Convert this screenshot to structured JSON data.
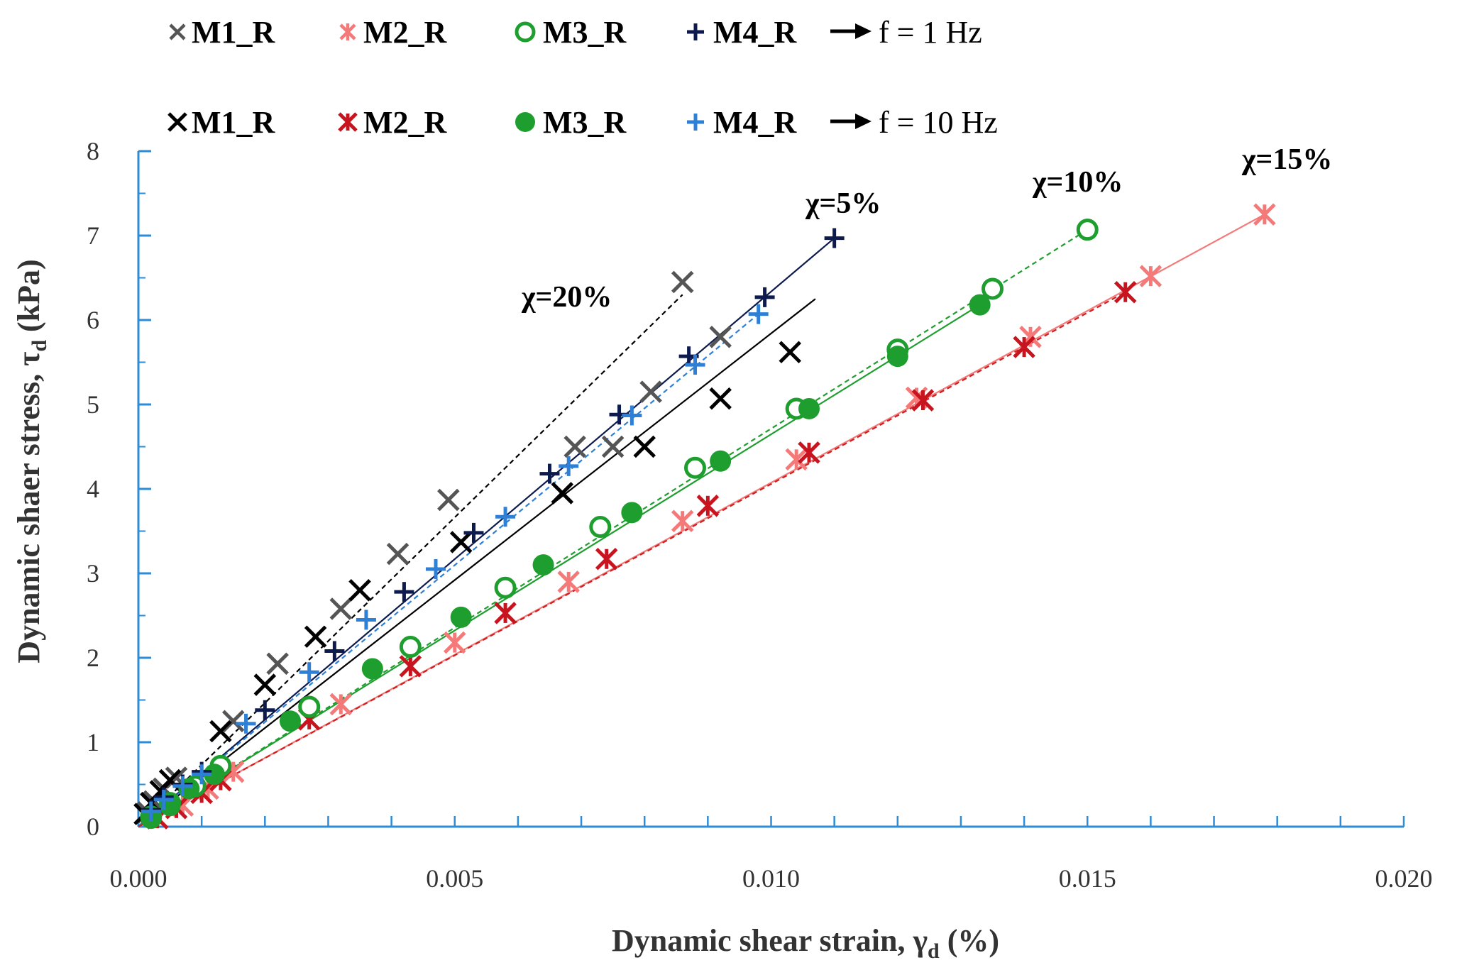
{
  "chart_data": {
    "type": "scatter",
    "xlabel": "Dynamic shear strain, γ",
    "xlabel_sub": "d",
    "xlabel_unit": "(%)",
    "ylabel": "Dynamic shaer stress, τ",
    "ylabel_sub": "d",
    "ylabel_unit": "(kPa)",
    "xlim": [
      0,
      0.02
    ],
    "ylim": [
      0,
      8
    ],
    "xticks": [
      "0.000",
      "0.005",
      "0.010",
      "0.015",
      "0.020"
    ],
    "yticks": [
      "0",
      "1",
      "2",
      "3",
      "4",
      "5",
      "6",
      "7",
      "8"
    ],
    "grid": false,
    "axis_color": "#2E8BD6",
    "legend": {
      "rows": [
        {
          "frequency_label": "f = 1 Hz",
          "entries": [
            {
              "label": "M1_R",
              "marker": "x",
              "color": "#555555"
            },
            {
              "label": "M2_R",
              "marker": "asterisk",
              "color": "#F47A7A"
            },
            {
              "label": "M3_R",
              "marker": "open-circle",
              "color": "#1E9E2E"
            },
            {
              "label": "M4_R",
              "marker": "plus",
              "color": "#0D1A4D"
            }
          ]
        },
        {
          "frequency_label": "f = 10 Hz",
          "entries": [
            {
              "label": "M1_R",
              "marker": "x",
              "color": "#000000"
            },
            {
              "label": "M2_R",
              "marker": "asterisk",
              "color": "#C8141E"
            },
            {
              "label": "M3_R",
              "marker": "filled-circle",
              "color": "#1E9E2E"
            },
            {
              "label": "M4_R",
              "marker": "plus",
              "color": "#2E7FD6"
            }
          ]
        }
      ]
    },
    "annotations": [
      "χ=20%",
      "χ=5%",
      "χ=10%",
      "χ=15%"
    ],
    "series": [
      {
        "key": "m1_1hz",
        "marker": "x",
        "color": "#555555",
        "points": [
          [
            0.00015,
            0.17
          ],
          [
            0.00025,
            0.3
          ],
          [
            0.0004,
            0.45
          ],
          [
            0.0006,
            0.58
          ],
          [
            0.0015,
            1.25
          ],
          [
            0.0022,
            1.93
          ],
          [
            0.0032,
            2.58
          ],
          [
            0.0041,
            3.23
          ],
          [
            0.0049,
            3.87
          ],
          [
            0.0069,
            4.5
          ],
          [
            0.0075,
            4.5
          ],
          [
            0.0081,
            5.15
          ],
          [
            0.0086,
            6.45
          ],
          [
            0.0092,
            5.8
          ]
        ]
      },
      {
        "key": "m1_10hz",
        "marker": "x",
        "color": "#000000",
        "points": [
          [
            0.0001,
            0.15
          ],
          [
            0.0002,
            0.28
          ],
          [
            0.00035,
            0.42
          ],
          [
            0.0005,
            0.55
          ],
          [
            0.0013,
            1.13
          ],
          [
            0.002,
            1.68
          ],
          [
            0.0028,
            2.25
          ],
          [
            0.0035,
            2.8
          ],
          [
            0.0051,
            3.37
          ],
          [
            0.0067,
            3.95
          ],
          [
            0.008,
            4.5
          ],
          [
            0.0092,
            5.07
          ],
          [
            0.0103,
            5.62
          ]
        ]
      },
      {
        "key": "m2_1hz",
        "marker": "asterisk",
        "color": "#F47A7A",
        "points": [
          [
            0.0003,
            0.1
          ],
          [
            0.0007,
            0.25
          ],
          [
            0.0011,
            0.45
          ],
          [
            0.0015,
            0.65
          ],
          [
            0.0032,
            1.45
          ],
          [
            0.005,
            2.18
          ],
          [
            0.0068,
            2.9
          ],
          [
            0.0086,
            3.62
          ],
          [
            0.0104,
            4.35
          ],
          [
            0.0123,
            5.08
          ],
          [
            0.0141,
            5.8
          ],
          [
            0.016,
            6.52
          ],
          [
            0.0178,
            7.25
          ]
        ]
      },
      {
        "key": "m2_10hz",
        "marker": "asterisk",
        "color": "#C8141E",
        "points": [
          [
            0.0003,
            0.1
          ],
          [
            0.0006,
            0.22
          ],
          [
            0.001,
            0.4
          ],
          [
            0.0013,
            0.55
          ],
          [
            0.0027,
            1.27
          ],
          [
            0.0043,
            1.9
          ],
          [
            0.0058,
            2.53
          ],
          [
            0.0074,
            3.17
          ],
          [
            0.009,
            3.8
          ],
          [
            0.0106,
            4.43
          ],
          [
            0.0124,
            5.05
          ],
          [
            0.014,
            5.68
          ],
          [
            0.0156,
            6.33
          ]
        ]
      },
      {
        "key": "m3_1hz",
        "marker": "open-circle",
        "color": "#1E9E2E",
        "points": [
          [
            0.0002,
            0.12
          ],
          [
            0.0005,
            0.28
          ],
          [
            0.0009,
            0.48
          ],
          [
            0.0013,
            0.72
          ],
          [
            0.0027,
            1.42
          ],
          [
            0.0043,
            2.13
          ],
          [
            0.0058,
            2.83
          ],
          [
            0.0073,
            3.55
          ],
          [
            0.0088,
            4.25
          ],
          [
            0.0104,
            4.95
          ],
          [
            0.012,
            5.65
          ],
          [
            0.0135,
            6.37
          ],
          [
            0.015,
            7.07
          ]
        ]
      },
      {
        "key": "m3_10hz",
        "marker": "filled-circle",
        "color": "#1E9E2E",
        "points": [
          [
            0.0002,
            0.1
          ],
          [
            0.0005,
            0.25
          ],
          [
            0.0008,
            0.45
          ],
          [
            0.0012,
            0.62
          ],
          [
            0.0024,
            1.25
          ],
          [
            0.0037,
            1.87
          ],
          [
            0.0051,
            2.48
          ],
          [
            0.0064,
            3.1
          ],
          [
            0.0078,
            3.72
          ],
          [
            0.0092,
            4.33
          ],
          [
            0.0106,
            4.95
          ],
          [
            0.012,
            5.57
          ],
          [
            0.0133,
            6.18
          ]
        ]
      },
      {
        "key": "m4_1hz",
        "marker": "plus",
        "color": "#0D1A4D",
        "points": [
          [
            0.0002,
            0.2
          ],
          [
            0.0004,
            0.35
          ],
          [
            0.0007,
            0.5
          ],
          [
            0.001,
            0.65
          ],
          [
            0.002,
            1.38
          ],
          [
            0.0031,
            2.08
          ],
          [
            0.0042,
            2.78
          ],
          [
            0.0053,
            3.48
          ],
          [
            0.0065,
            4.18
          ],
          [
            0.0076,
            4.88
          ],
          [
            0.0087,
            5.57
          ],
          [
            0.0099,
            6.27
          ],
          [
            0.011,
            6.97
          ]
        ]
      },
      {
        "key": "m4_10hz",
        "marker": "plus",
        "color": "#2E7FD6",
        "points": [
          [
            0.0002,
            0.18
          ],
          [
            0.0004,
            0.32
          ],
          [
            0.0007,
            0.48
          ],
          [
            0.001,
            0.62
          ],
          [
            0.0017,
            1.22
          ],
          [
            0.0027,
            1.83
          ],
          [
            0.0036,
            2.45
          ],
          [
            0.0047,
            3.05
          ],
          [
            0.0058,
            3.67
          ],
          [
            0.0068,
            4.27
          ],
          [
            0.0078,
            4.87
          ],
          [
            0.0088,
            5.47
          ],
          [
            0.0098,
            6.07
          ]
        ]
      }
    ],
    "trendlines": [
      {
        "key": "chi20",
        "color": "#000000",
        "dashed": true,
        "from": [
          0,
          0
        ],
        "to": [
          0.0086,
          6.3
        ]
      },
      {
        "key": "m1_10hz_fit",
        "color": "#000000",
        "dashed": false,
        "from": [
          0,
          0
        ],
        "to": [
          0.0107,
          6.25
        ]
      },
      {
        "key": "m4_1hz_fit",
        "color": "#0D1A4D",
        "dashed": false,
        "from": [
          0,
          0
        ],
        "to": [
          0.011,
          6.97
        ]
      },
      {
        "key": "m4_10hz_fit",
        "color": "#2E7FD6",
        "dashed": true,
        "from": [
          0,
          0
        ],
        "to": [
          0.0098,
          6.07
        ]
      },
      {
        "key": "m3_1hz_fit",
        "color": "#1E9E2E",
        "dashed": true,
        "from": [
          0,
          0
        ],
        "to": [
          0.015,
          7.07
        ]
      },
      {
        "key": "m3_10hz_fit",
        "color": "#1E9E2E",
        "dashed": false,
        "from": [
          0,
          0
        ],
        "to": [
          0.0133,
          6.18
        ]
      },
      {
        "key": "m2_1hz_fit",
        "color": "#F47A7A",
        "dashed": false,
        "from": [
          0,
          0
        ],
        "to": [
          0.0178,
          7.25
        ]
      },
      {
        "key": "m2_10hz_fit",
        "color": "#D21E1E",
        "dashed": true,
        "from": [
          0,
          0
        ],
        "to": [
          0.0156,
          6.33
        ]
      }
    ]
  }
}
